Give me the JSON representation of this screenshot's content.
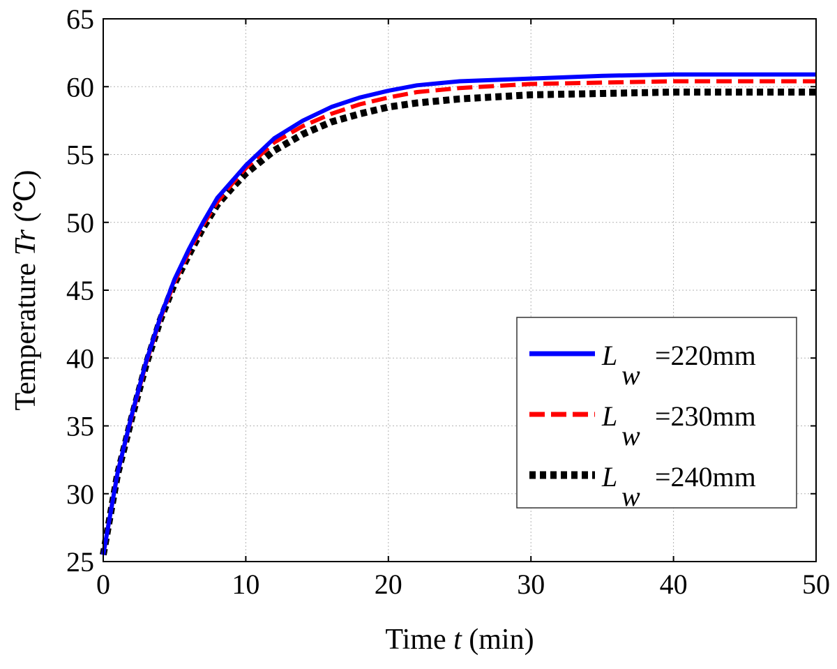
{
  "chart_data": {
    "type": "line",
    "title": "",
    "xlabel_prefix": "Time ",
    "xlabel_var": "t",
    "xlabel_suffix": " (min)",
    "ylabel_prefix": "Temperature ",
    "ylabel_var": "Tr",
    "ylabel_suffix": " (℃)",
    "xlim": [
      0,
      50
    ],
    "ylim": [
      25,
      65
    ],
    "xticks": [
      0,
      10,
      20,
      30,
      40,
      50
    ],
    "yticks": [
      25,
      30,
      35,
      40,
      45,
      50,
      55,
      60,
      65
    ],
    "grid": true,
    "legend_position": "bottom-right",
    "series": [
      {
        "name": "=220mm",
        "legend_symbol": "L",
        "legend_subscript": "w",
        "color": "#0000ff",
        "style": "solid",
        "x": [
          0,
          1,
          2,
          3,
          4,
          5,
          6,
          7,
          8,
          9,
          10,
          12,
          14,
          16,
          18,
          20,
          22,
          25,
          30,
          35,
          40,
          45,
          50
        ],
        "y": [
          25.5,
          31.5,
          35.8,
          39.7,
          43.0,
          45.8,
          48.0,
          50.0,
          51.8,
          53.0,
          54.2,
          56.2,
          57.5,
          58.5,
          59.2,
          59.7,
          60.1,
          60.4,
          60.6,
          60.8,
          60.9,
          60.9,
          60.9
        ]
      },
      {
        "name": "=230mm",
        "legend_symbol": "L",
        "legend_subscript": "w",
        "color": "#ff0000",
        "style": "dashed",
        "x": [
          0,
          1,
          2,
          3,
          4,
          5,
          6,
          7,
          8,
          9,
          10,
          12,
          14,
          16,
          18,
          20,
          22,
          25,
          30,
          35,
          40,
          45,
          50
        ],
        "y": [
          25.5,
          31.5,
          35.7,
          39.6,
          42.9,
          45.6,
          47.8,
          49.8,
          51.5,
          52.8,
          54.0,
          55.9,
          57.1,
          58.0,
          58.7,
          59.2,
          59.6,
          59.9,
          60.2,
          60.3,
          60.4,
          60.4,
          60.4
        ]
      },
      {
        "name": "=240mm",
        "legend_symbol": "L",
        "legend_subscript": "w",
        "color": "#000000",
        "style": "dotted",
        "x": [
          0,
          1,
          2,
          3,
          4,
          5,
          6,
          7,
          8,
          9,
          10,
          12,
          14,
          16,
          18,
          20,
          22,
          25,
          30,
          35,
          40,
          45,
          50
        ],
        "y": [
          25.5,
          31.4,
          35.6,
          39.5,
          42.8,
          45.5,
          47.6,
          49.6,
          51.3,
          52.5,
          53.6,
          55.3,
          56.5,
          57.4,
          58.0,
          58.5,
          58.8,
          59.1,
          59.4,
          59.5,
          59.6,
          59.6,
          59.6
        ]
      }
    ]
  }
}
